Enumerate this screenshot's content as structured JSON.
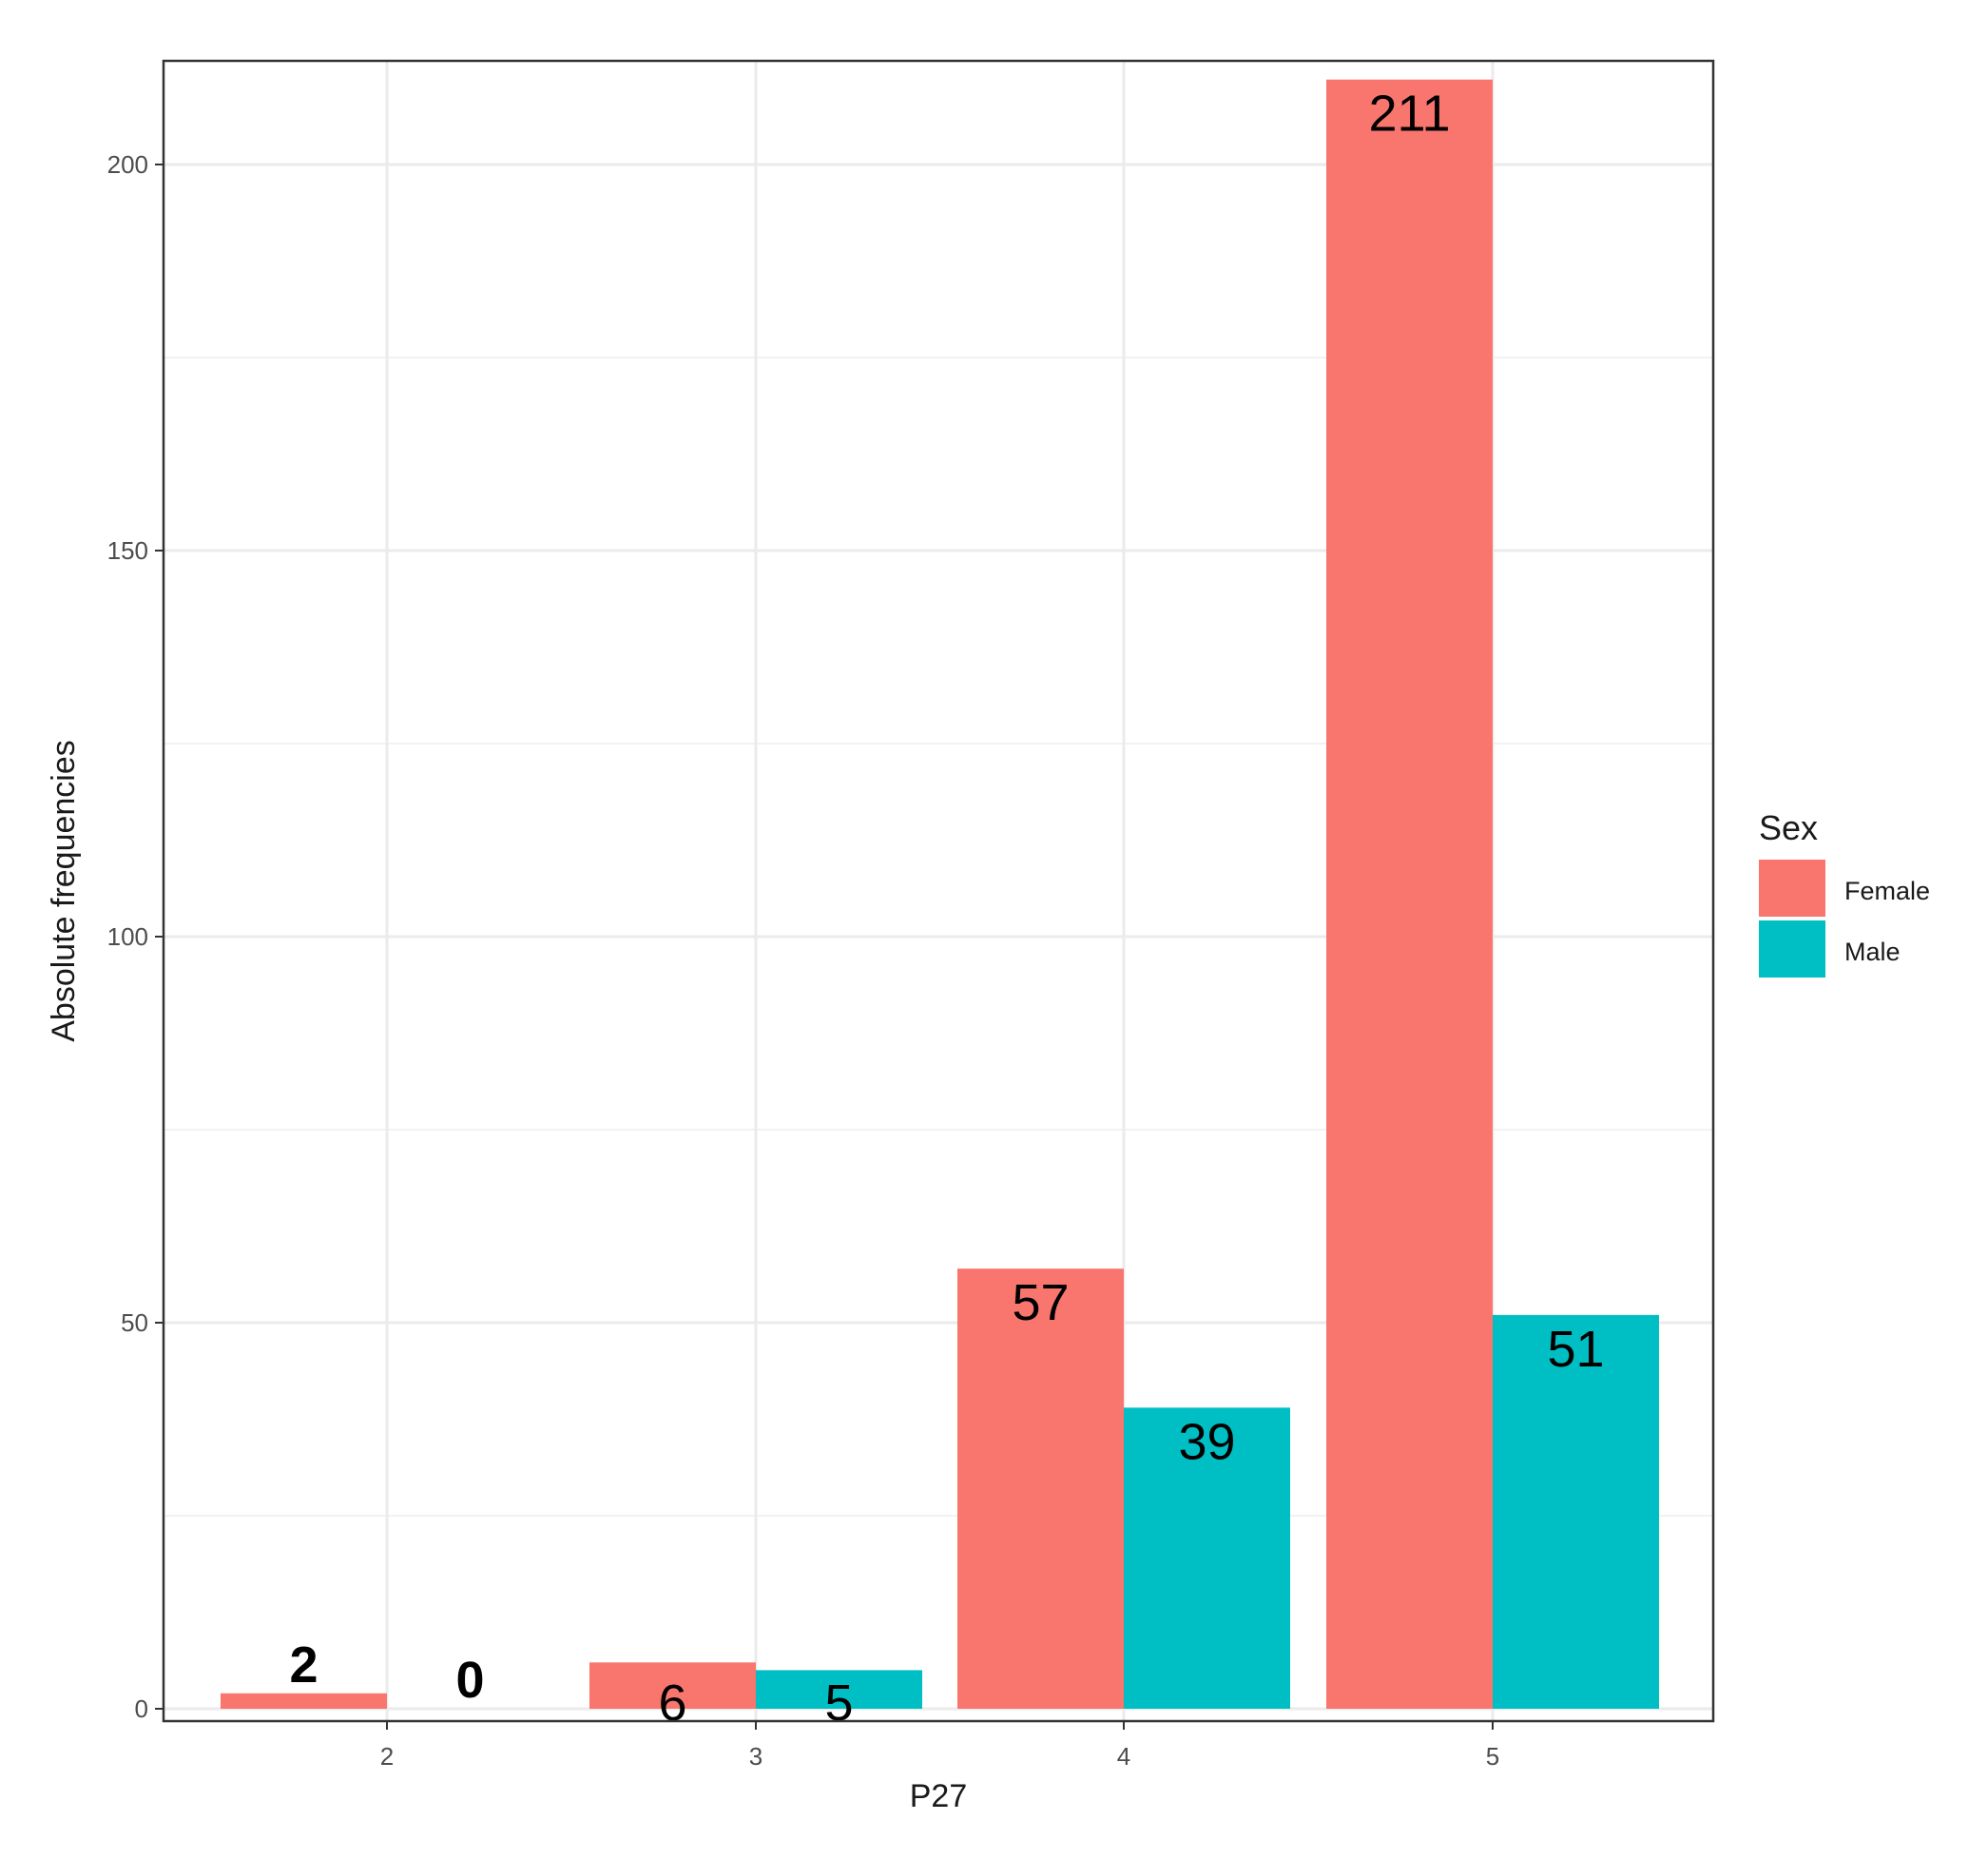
{
  "chart_data": {
    "type": "bar",
    "categories": [
      "2",
      "3",
      "4",
      "5"
    ],
    "series": [
      {
        "name": "Female",
        "values": [
          2,
          6,
          57,
          211
        ],
        "color": "#F8766D"
      },
      {
        "name": "Male",
        "values": [
          0,
          5,
          39,
          51
        ],
        "color": "#00BFC4"
      }
    ],
    "xlabel": "P27",
    "ylabel": "Absolute frequencies",
    "ylim": [
      0,
      211
    ],
    "yticks": [
      0,
      50,
      100,
      150,
      200
    ],
    "grid": true,
    "legend": {
      "title": "Sex",
      "position": "right"
    },
    "data_labels": true
  }
}
